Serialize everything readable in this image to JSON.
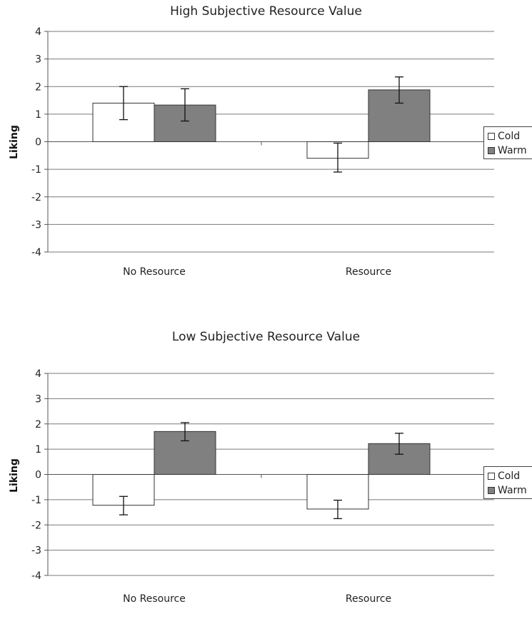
{
  "chart_data": [
    {
      "type": "bar",
      "title": "High Subjective Resource Value",
      "ylabel": "Liking",
      "xlabel": "",
      "ylim": [
        -4,
        4
      ],
      "yticks": [
        "4",
        "3",
        "2",
        "1",
        "0",
        "-1",
        "-2",
        "-3",
        "-4"
      ],
      "categories": [
        "No Resource",
        "Resource"
      ],
      "series": [
        {
          "name": "Cold",
          "color": "#ffffff",
          "values": [
            1.4,
            -0.6
          ],
          "err_low": [
            0.8,
            -1.1
          ],
          "err_high": [
            2.0,
            -0.05
          ]
        },
        {
          "name": "Warm",
          "color": "#808080",
          "values": [
            1.33,
            1.88
          ],
          "err_low": [
            0.75,
            1.4
          ],
          "err_high": [
            1.92,
            2.35
          ]
        }
      ],
      "grid": true,
      "legend": "right"
    },
    {
      "type": "bar",
      "title": "Low Subjective Resource Value",
      "ylabel": "Liking",
      "xlabel": "",
      "ylim": [
        -4,
        4
      ],
      "yticks": [
        "4",
        "3",
        "2",
        "1",
        "0",
        "-1",
        "-2",
        "-3",
        "-4"
      ],
      "categories": [
        "No Resource",
        "Resource"
      ],
      "series": [
        {
          "name": "Cold",
          "color": "#ffffff",
          "values": [
            -1.22,
            -1.37
          ],
          "err_low": [
            -1.6,
            -1.75
          ],
          "err_high": [
            -0.87,
            -1.02
          ]
        },
        {
          "name": "Warm",
          "color": "#808080",
          "values": [
            1.7,
            1.22
          ],
          "err_low": [
            1.33,
            0.8
          ],
          "err_high": [
            2.05,
            1.63
          ]
        }
      ],
      "grid": true,
      "legend": "right"
    }
  ]
}
